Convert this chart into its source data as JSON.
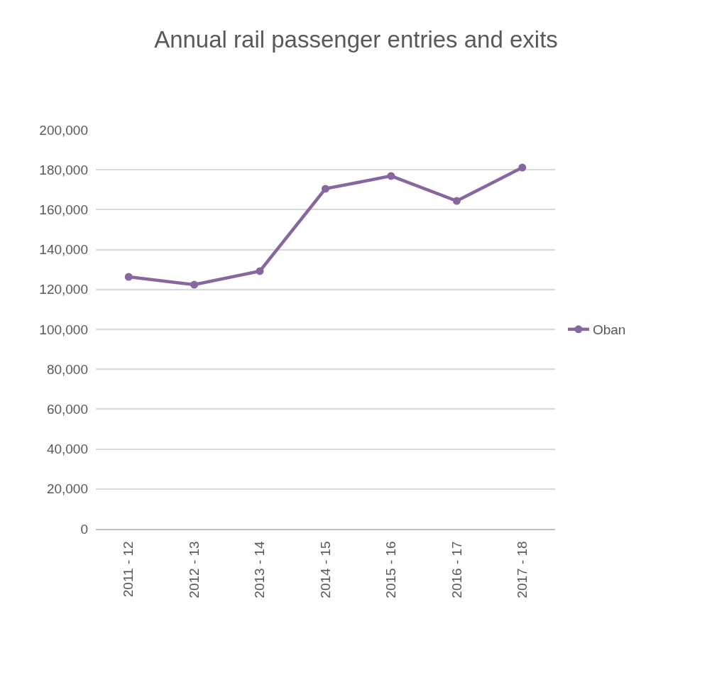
{
  "chart_data": {
    "type": "line",
    "title": "Annual rail passenger entries and exits",
    "categories": [
      "2011 - 12",
      "2012 - 13",
      "2013 - 14",
      "2014 - 15",
      "2015 - 16",
      "2016 - 17",
      "2017 - 18"
    ],
    "series": [
      {
        "name": "Oban",
        "color": "#8767a0",
        "values": [
          126300,
          122400,
          129200,
          170500,
          176900,
          164400,
          181100
        ]
      }
    ],
    "ylim": [
      0,
      200000
    ],
    "yticks": [
      {
        "value": 0,
        "label": "0"
      },
      {
        "value": 20000,
        "label": "20,000"
      },
      {
        "value": 40000,
        "label": "40,000"
      },
      {
        "value": 60000,
        "label": "60,000"
      },
      {
        "value": 80000,
        "label": "80,000"
      },
      {
        "value": 100000,
        "label": "100,000"
      },
      {
        "value": 120000,
        "label": "120,000"
      },
      {
        "value": 140000,
        "label": "140,000"
      },
      {
        "value": 160000,
        "label": "160,000"
      },
      {
        "value": 180000,
        "label": "180,000"
      },
      {
        "value": 200000,
        "label": "200,000"
      }
    ],
    "grid": "y",
    "legend": "right",
    "marker": "circle",
    "line_style": "solid"
  }
}
